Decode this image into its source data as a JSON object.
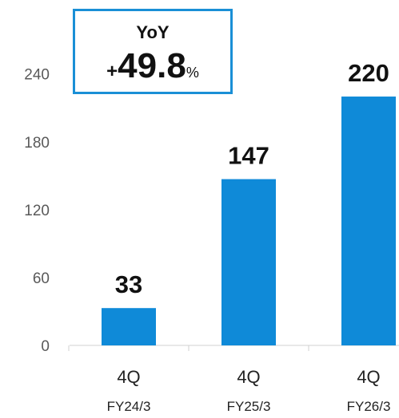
{
  "chart_data": {
    "type": "bar",
    "categories": [
      "4Q",
      "4Q",
      "4Q"
    ],
    "sublabels": [
      "FY24/3",
      "FY25/3",
      "FY26/3"
    ],
    "values": [
      33,
      147,
      220
    ],
    "data_labels": [
      "33",
      "147",
      "220"
    ],
    "ylim": [
      0,
      270
    ],
    "yticks": [
      0,
      60,
      120,
      180,
      240
    ],
    "grid": false,
    "bar_color": "#0f8ad8"
  },
  "yoy_box": {
    "title": "YoY",
    "sign": "+",
    "value": "49.8",
    "unit": "%",
    "border_color": "#1a8fd6"
  }
}
